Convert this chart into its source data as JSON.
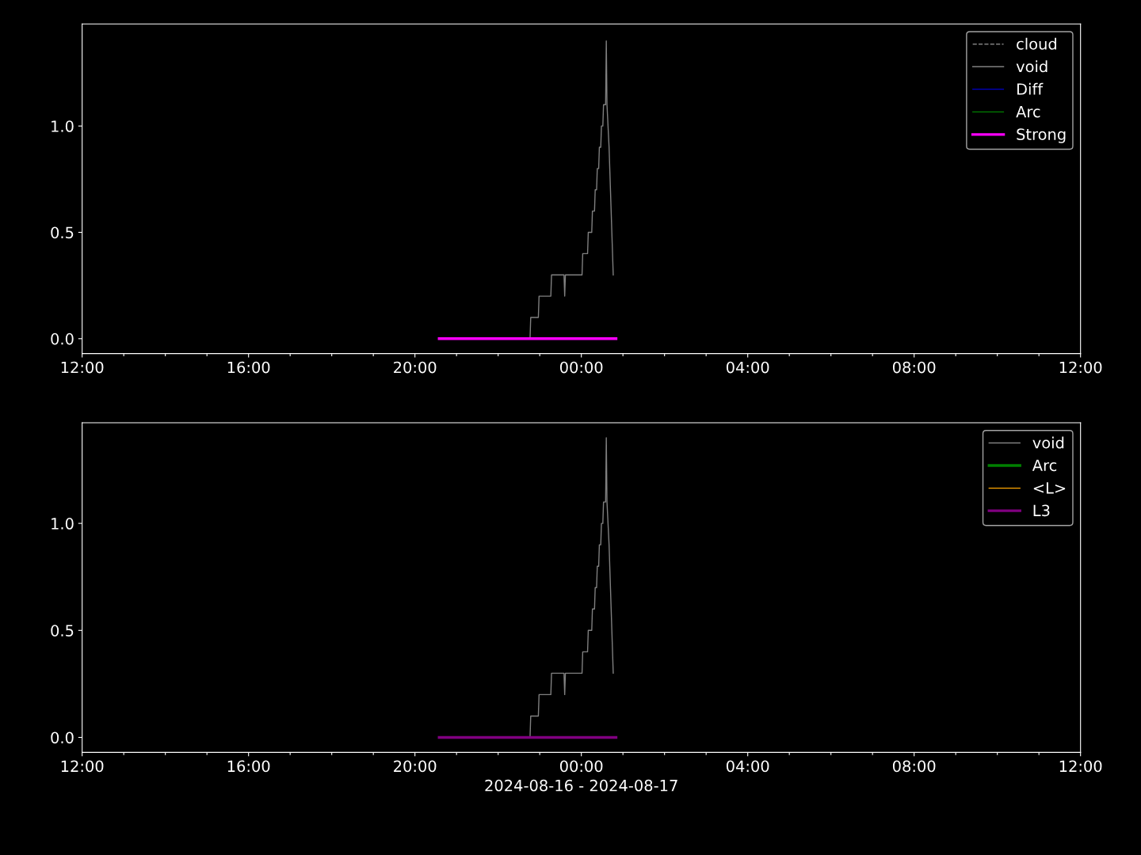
{
  "chart_data": [
    {
      "type": "line",
      "xlim": [
        "2024-08-16T12:00",
        "2024-08-17T12:00"
      ],
      "ylim": [
        -0.07,
        1.48
      ],
      "yticks": [
        {
          "value": 0,
          "label": "0.0"
        },
        {
          "value": 0.5,
          "label": "0.5"
        },
        {
          "value": 1,
          "label": "1.0"
        }
      ],
      "xticks": [
        {
          "value": "2024-08-16T12:00",
          "label": "12:00"
        },
        {
          "value": "2024-08-16T13:00",
          "label": null
        },
        {
          "value": "2024-08-16T14:00",
          "label": null
        },
        {
          "value": "2024-08-16T15:00",
          "label": null
        },
        {
          "value": "2024-08-16T16:00",
          "label": "16:00"
        },
        {
          "value": "2024-08-16T17:00",
          "label": null
        },
        {
          "value": "2024-08-16T18:00",
          "label": null
        },
        {
          "value": "2024-08-16T19:00",
          "label": null
        },
        {
          "value": "2024-08-16T20:00",
          "label": "20:00"
        },
        {
          "value": "2024-08-16T21:00",
          "label": null
        },
        {
          "value": "2024-08-16T22:00",
          "label": null
        },
        {
          "value": "2024-08-16T23:00",
          "label": null
        },
        {
          "value": "2024-08-17T00:00",
          "label": "00:00"
        },
        {
          "value": "2024-08-17T01:00",
          "label": null
        },
        {
          "value": "2024-08-17T02:00",
          "label": null
        },
        {
          "value": "2024-08-17T03:00",
          "label": null
        },
        {
          "value": "2024-08-17T04:00",
          "label": "04:00"
        },
        {
          "value": "2024-08-17T05:00",
          "label": null
        },
        {
          "value": "2024-08-17T06:00",
          "label": null
        },
        {
          "value": "2024-08-17T07:00",
          "label": null
        },
        {
          "value": "2024-08-17T08:00",
          "label": "08:00"
        },
        {
          "value": "2024-08-17T09:00",
          "label": null
        },
        {
          "value": "2024-08-17T10:00",
          "label": null
        },
        {
          "value": "2024-08-17T11:00",
          "label": null
        },
        {
          "value": "2024-08-17T12:00",
          "label": "12:00"
        }
      ],
      "grid": false,
      "legend": "top right",
      "marker": "none",
      "series": [
        {
          "name": "cloud",
          "color": "#808080",
          "line_style": "dashed"
        },
        {
          "name": "void",
          "color": "#808080",
          "line_style": "solid",
          "x": [
            "2024-08-16T22:46",
            "2024-08-16T22:47",
            "2024-08-16T22:58",
            "2024-08-16T22:59",
            "2024-08-16T23:16",
            "2024-08-16T23:17",
            "2024-08-16T23:35",
            "2024-08-16T23:36",
            "2024-08-16T23:37",
            "2024-08-17T00:01",
            "2024-08-17T00:02",
            "2024-08-17T00:09",
            "2024-08-17T00:10",
            "2024-08-17T00:15",
            "2024-08-17T00:16",
            "2024-08-17T00:19",
            "2024-08-17T00:20",
            "2024-08-17T00:22",
            "2024-08-17T00:23",
            "2024-08-17T00:25",
            "2024-08-17T00:26",
            "2024-08-17T00:28",
            "2024-08-17T00:29",
            "2024-08-17T00:31",
            "2024-08-17T00:32",
            "2024-08-17T00:35",
            "2024-08-17T00:36",
            "2024-08-17T00:37",
            "2024-08-17T00:40",
            "2024-08-17T00:46"
          ],
          "values": [
            0.0,
            0.1,
            0.1,
            0.2,
            0.2,
            0.3,
            0.3,
            0.2,
            0.3,
            0.3,
            0.4,
            0.4,
            0.5,
            0.5,
            0.6,
            0.6,
            0.7,
            0.7,
            0.8,
            0.8,
            0.9,
            0.9,
            1.0,
            1.0,
            1.1,
            1.1,
            1.4,
            1.1,
            0.9,
            0.3
          ]
        },
        {
          "name": "Diff",
          "color": "#0000ff",
          "line_style": "solid"
        },
        {
          "name": "Arc",
          "color": "#008000",
          "line_style": "solid"
        },
        {
          "name": "Strong",
          "color": "#ff00ff",
          "line_style": "solid",
          "x": [
            "2024-08-16T20:35",
            "2024-08-17T00:50"
          ],
          "values": [
            0,
            0
          ]
        }
      ]
    },
    {
      "type": "line",
      "xlim": [
        "2024-08-16T12:00",
        "2024-08-17T12:00"
      ],
      "ylim": [
        -0.07,
        1.47
      ],
      "yticks": [
        {
          "value": 0,
          "label": "0.0"
        },
        {
          "value": 0.5,
          "label": "0.5"
        },
        {
          "value": 1,
          "label": "1.0"
        }
      ],
      "xticks": [
        {
          "value": "2024-08-16T12:00",
          "label": "12:00"
        },
        {
          "value": "2024-08-16T13:00",
          "label": null
        },
        {
          "value": "2024-08-16T14:00",
          "label": null
        },
        {
          "value": "2024-08-16T15:00",
          "label": null
        },
        {
          "value": "2024-08-16T16:00",
          "label": "16:00"
        },
        {
          "value": "2024-08-16T17:00",
          "label": null
        },
        {
          "value": "2024-08-16T18:00",
          "label": null
        },
        {
          "value": "2024-08-16T19:00",
          "label": null
        },
        {
          "value": "2024-08-16T20:00",
          "label": "20:00"
        },
        {
          "value": "2024-08-16T21:00",
          "label": null
        },
        {
          "value": "2024-08-16T22:00",
          "label": null
        },
        {
          "value": "2024-08-16T23:00",
          "label": null
        },
        {
          "value": "2024-08-17T00:00",
          "label": "00:00"
        },
        {
          "value": "2024-08-17T01:00",
          "label": null
        },
        {
          "value": "2024-08-17T02:00",
          "label": null
        },
        {
          "value": "2024-08-17T03:00",
          "label": null
        },
        {
          "value": "2024-08-17T04:00",
          "label": "04:00"
        },
        {
          "value": "2024-08-17T05:00",
          "label": null
        },
        {
          "value": "2024-08-17T06:00",
          "label": null
        },
        {
          "value": "2024-08-17T07:00",
          "label": null
        },
        {
          "value": "2024-08-17T08:00",
          "label": "08:00"
        },
        {
          "value": "2024-08-17T09:00",
          "label": null
        },
        {
          "value": "2024-08-17T10:00",
          "label": null
        },
        {
          "value": "2024-08-17T11:00",
          "label": null
        },
        {
          "value": "2024-08-17T12:00",
          "label": "12:00"
        }
      ],
      "xlabel": "2024-08-16 - 2024-08-17",
      "grid": false,
      "legend": "top right",
      "marker": "none",
      "series": [
        {
          "name": "void",
          "color": "#808080",
          "line_style": "solid",
          "x": [
            "2024-08-16T22:46",
            "2024-08-16T22:47",
            "2024-08-16T22:58",
            "2024-08-16T22:59",
            "2024-08-16T23:16",
            "2024-08-16T23:17",
            "2024-08-16T23:35",
            "2024-08-16T23:36",
            "2024-08-16T23:37",
            "2024-08-17T00:01",
            "2024-08-17T00:02",
            "2024-08-17T00:09",
            "2024-08-17T00:10",
            "2024-08-17T00:15",
            "2024-08-17T00:16",
            "2024-08-17T00:19",
            "2024-08-17T00:20",
            "2024-08-17T00:22",
            "2024-08-17T00:23",
            "2024-08-17T00:25",
            "2024-08-17T00:26",
            "2024-08-17T00:28",
            "2024-08-17T00:29",
            "2024-08-17T00:31",
            "2024-08-17T00:32",
            "2024-08-17T00:35",
            "2024-08-17T00:36",
            "2024-08-17T00:37",
            "2024-08-17T00:40",
            "2024-08-17T00:46"
          ],
          "values": [
            0.0,
            0.1,
            0.1,
            0.2,
            0.2,
            0.3,
            0.3,
            0.2,
            0.3,
            0.3,
            0.4,
            0.4,
            0.5,
            0.5,
            0.6,
            0.6,
            0.7,
            0.7,
            0.8,
            0.8,
            0.9,
            0.9,
            1.0,
            1.0,
            1.1,
            1.1,
            1.4,
            1.1,
            0.9,
            0.3
          ]
        },
        {
          "name": "Arc",
          "color": "#008000",
          "line_style": "solid"
        },
        {
          "name": "<L>",
          "color": "#ffa500",
          "line_style": "solid"
        },
        {
          "name": "L3",
          "color": "#800080",
          "line_style": "solid",
          "x": [
            "2024-08-16T20:35",
            "2024-08-17T00:50"
          ],
          "values": [
            0,
            0
          ]
        }
      ]
    }
  ]
}
